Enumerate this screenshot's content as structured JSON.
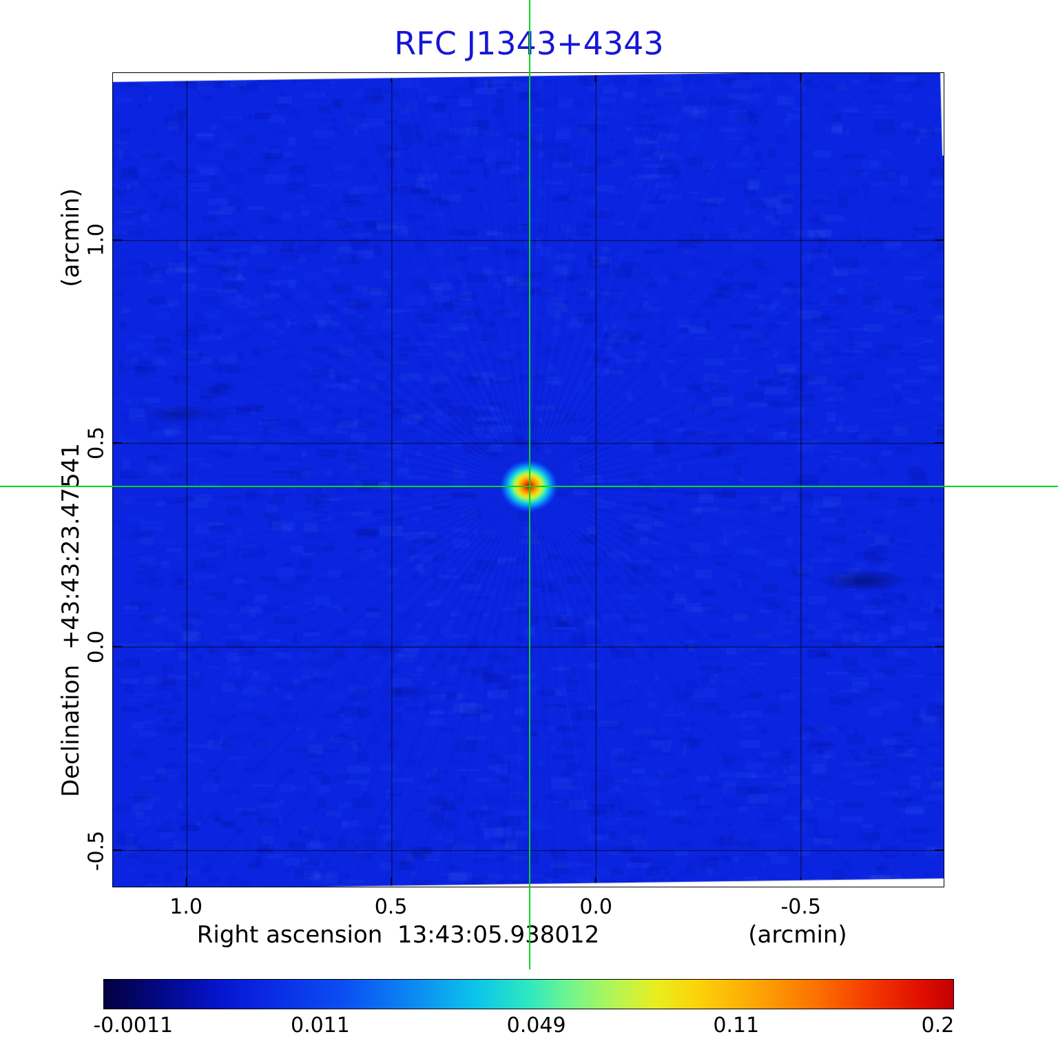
{
  "title": "RFC J1343+4343",
  "axes": {
    "x_label": "Right ascension  13:43:05.938012",
    "x_unit": "(arcmin)",
    "y_label": "Declination  +43:43:23.47541",
    "y_unit": "(arcmin)",
    "x_tick_labels": [
      "1.0",
      "0.5",
      "0.0",
      "-0.5"
    ],
    "y_tick_labels": [
      "1.0",
      "0.5",
      "0.0",
      "-0.5"
    ]
  },
  "colorbar": {
    "tick_labels": [
      "-0.0011",
      "0.011",
      "0.049",
      "0.11",
      "0.2"
    ],
    "tick_positions": [
      0.035,
      0.255,
      0.509,
      0.744,
      0.981
    ],
    "stops": [
      [
        0.0,
        "#02023f"
      ],
      [
        0.06,
        "#03077e"
      ],
      [
        0.13,
        "#0513c8"
      ],
      [
        0.18,
        "#0a24e0"
      ],
      [
        0.28,
        "#0b4df2"
      ],
      [
        0.37,
        "#0c8df2"
      ],
      [
        0.44,
        "#0cc6ea"
      ],
      [
        0.5,
        "#2ee8c0"
      ],
      [
        0.55,
        "#74f58c"
      ],
      [
        0.6,
        "#b3f556"
      ],
      [
        0.65,
        "#e8ee1f"
      ],
      [
        0.7,
        "#fcd209"
      ],
      [
        0.77,
        "#fda405"
      ],
      [
        0.84,
        "#fc7001"
      ],
      [
        0.9,
        "#f43b00"
      ],
      [
        0.96,
        "#e01000"
      ],
      [
        1.0,
        "#c40000"
      ]
    ]
  },
  "colors": {
    "title": "#1616d6",
    "crosshair": "#09d51f",
    "grid": "rgba(0,0,0,0.75)",
    "axis_text": "#000000"
  },
  "chart_data": {
    "type": "heatmap",
    "title": "RFC J1343+4343",
    "xlabel": "Right ascension 13:43:05.938012 (arcmin)",
    "ylabel": "Declination +43:43:23.47541 (arcmin)",
    "x_ticks": [
      1.0,
      0.5,
      0.0,
      -0.5
    ],
    "y_ticks": [
      1.0,
      0.5,
      0.0,
      -0.5
    ],
    "x_range": [
      1.18,
      -0.85
    ],
    "y_range": [
      1.41,
      -0.59
    ],
    "grid_step_arcmin": 0.5,
    "colormap": "jet",
    "colorbar_values": [
      -0.0011,
      0.011,
      0.049,
      0.11,
      0.2
    ],
    "background_colormap_fraction": 0.18,
    "source": {
      "x_arcmin": 0.164,
      "y_arcmin": 0.395,
      "peak_colormap_fraction": 1.0,
      "radius_px": 42
    }
  }
}
